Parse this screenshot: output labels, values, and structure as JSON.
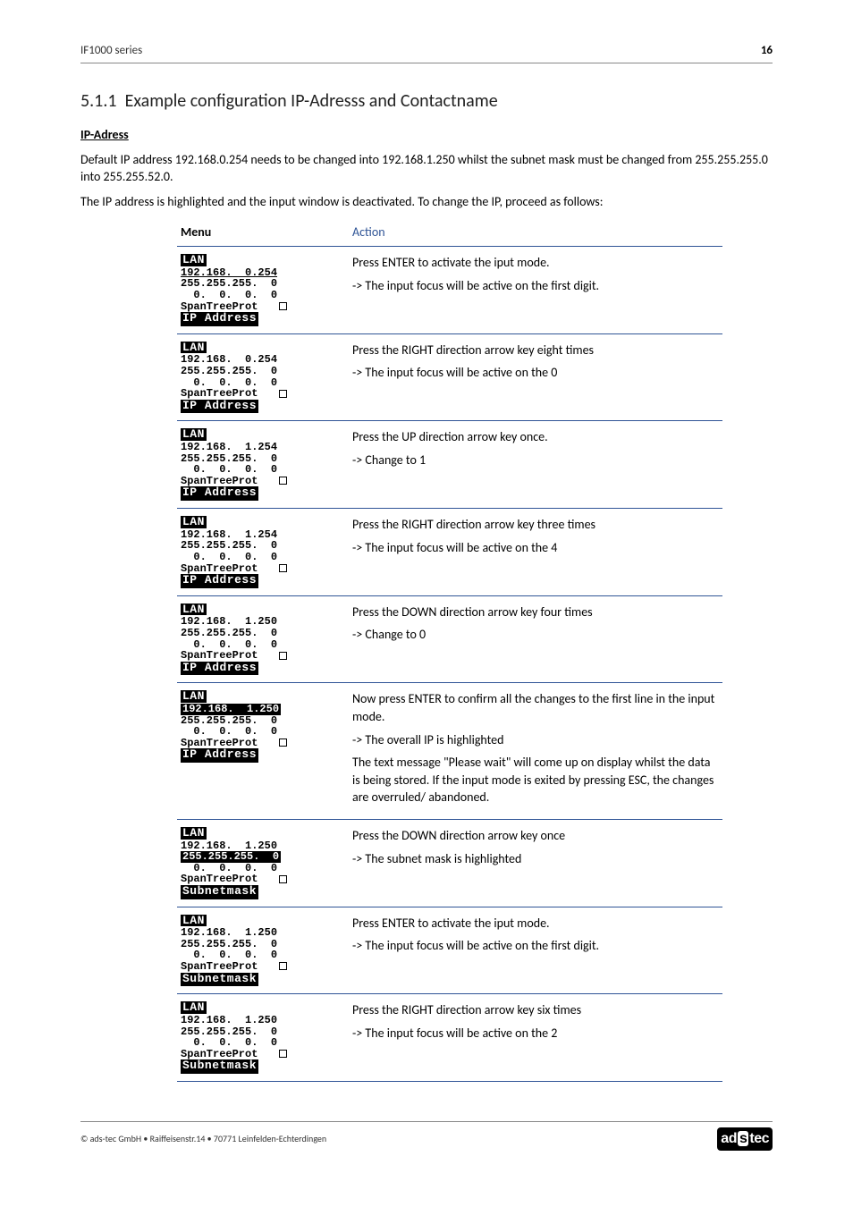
{
  "header": {
    "left": "IF1000 series",
    "pageNum": "16"
  },
  "section": {
    "number": "5.1.1",
    "title": "Example configuration IP-Adresss and Contactname",
    "subheading": "IP-Adress",
    "para1": "Default IP address 192.168.0.254 needs to be changed into 192.168.1.250 whilst the subnet mask must be changed from 255.255.255.0 into 255.255.52.0.",
    "para2": "The IP address is highlighted and the input window is deactivated. To change the IP, proceed as follows:"
  },
  "table": {
    "head": {
      "menu": "Menu",
      "action": "Action"
    },
    "rows": [
      {
        "lcd": {
          "top": "LAN",
          "lines": [
            "192.168.  0.254",
            "255.255.255.  0",
            "  0.  0.  0.  0",
            "SpanTreeProt   "
          ],
          "foot": "IP Address",
          "footInv": true,
          "hl": "row0"
        },
        "action": [
          "Press ENTER to activate the iput mode.",
          "-> The input focus will be active on the first digit."
        ]
      },
      {
        "lcd": {
          "top": "LAN",
          "lines": [
            "192.168.  0.254",
            "255.255.255.  0",
            "  0.  0.  0.  0",
            "SpanTreeProt   "
          ],
          "foot": "IP Address",
          "footInv": true
        },
        "action": [
          "Press the RIGHT direction arrow key eight times",
          "-> The input focus will be active on the 0"
        ]
      },
      {
        "lcd": {
          "top": "LAN",
          "lines": [
            "192.168.  1.254",
            "255.255.255.  0",
            "  0.  0.  0.  0",
            "SpanTreeProt   "
          ],
          "foot": "IP Address",
          "footInv": true
        },
        "action": [
          "Press the UP direction arrow key once.",
          "-> Change to 1"
        ]
      },
      {
        "lcd": {
          "top": "LAN",
          "lines": [
            "192.168.  1.254",
            "255.255.255.  0",
            "  0.  0.  0.  0",
            "SpanTreeProt   "
          ],
          "foot": "IP Address",
          "footInv": true
        },
        "action": [
          "Press the RIGHT direction arrow key three times",
          "-> The input focus will be active on the 4"
        ]
      },
      {
        "lcd": {
          "top": "LAN",
          "lines": [
            "192.168.  1.250",
            "255.255.255.  0",
            "  0.  0.  0.  0",
            "SpanTreeProt   "
          ],
          "foot": "IP Address",
          "footInv": true
        },
        "action": [
          "Press the DOWN direction arrow key four times",
          "-> Change to 0"
        ]
      },
      {
        "lcd": {
          "top": "LAN",
          "lines": [
            "192.168.  1.250",
            "255.255.255.  0",
            "  0.  0.  0.  0",
            "SpanTreeProt   "
          ],
          "foot": "IP Address",
          "footInv": true,
          "hl": "ip_inv"
        },
        "action": [
          "Now press ENTER to confirm all the changes to the first line in the input mode.",
          "-> The overall IP is highlighted",
          "The text message \"Please wait\" will come up on display whilst the data is being stored. If the input mode is exited by pressing ESC, the changes are overruled/ abandoned."
        ]
      },
      {
        "lcd": {
          "top": "LAN",
          "lines": [
            "192.168.  1.250",
            "255.255.255.  0",
            "  0.  0.  0.  0",
            "SpanTreeProt   "
          ],
          "foot": "Subnetmask",
          "footInv": true,
          "hl": "mask_inv"
        },
        "action": [
          "Press the DOWN direction arrow key once",
          "-> The subnet mask is highlighted"
        ]
      },
      {
        "lcd": {
          "top": "LAN",
          "lines": [
            "192.168.  1.250",
            "255.255.255.  0",
            "  0.  0.  0.  0",
            "SpanTreeProt   "
          ],
          "foot": "Subnetmask",
          "footInv": true
        },
        "action": [
          "Press ENTER to activate the iput mode.",
          "-> The input focus will be active on the first digit."
        ]
      },
      {
        "lcd": {
          "top": "LAN",
          "lines": [
            "192.168.  1.250",
            "255.255.255.  0",
            "  0.  0.  0.  0",
            "SpanTreeProt   "
          ],
          "foot": "Subnetmask",
          "footInv": true
        },
        "action": [
          "Press the RIGHT direction arrow key six times",
          "-> The input focus will be active on the 2"
        ]
      }
    ]
  },
  "footer": {
    "copyright": "© ads-tec GmbH • Raiffeisenstr.14 • 70771 Leinfelden-Echterdingen",
    "logo": "adstec"
  }
}
